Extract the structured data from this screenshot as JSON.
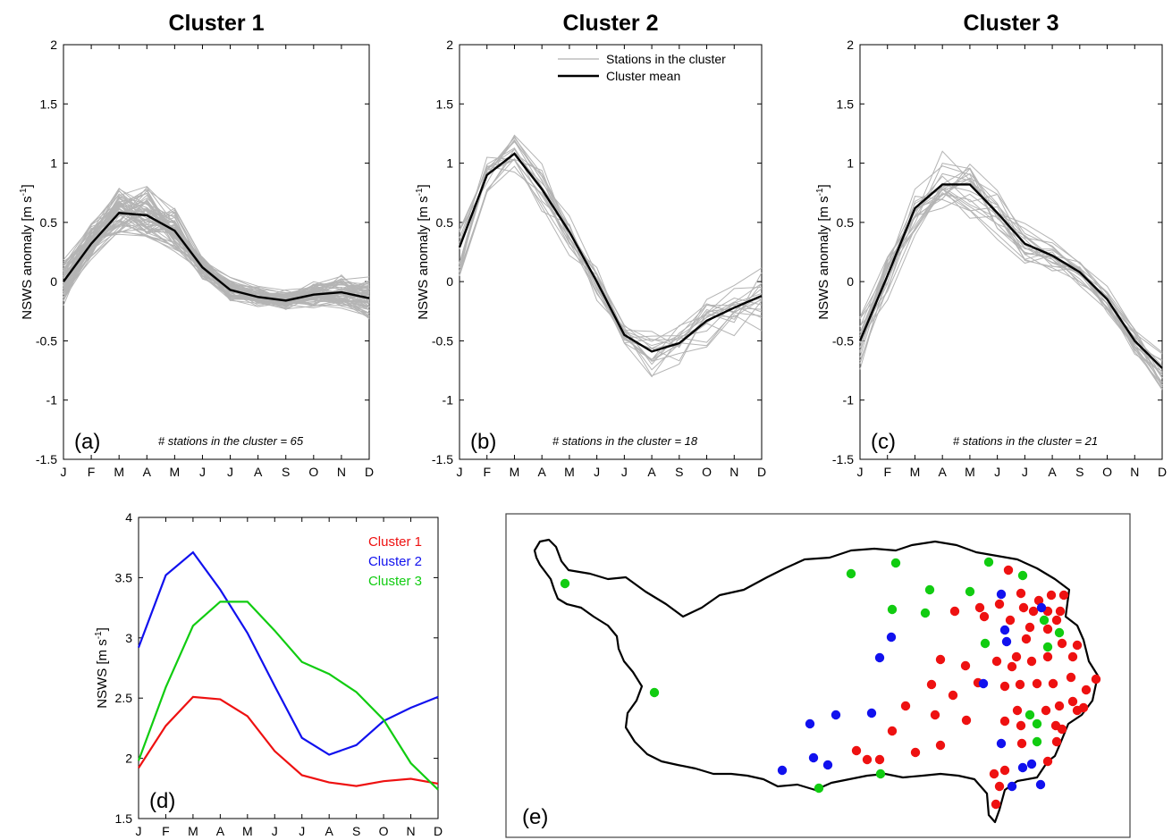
{
  "chart_data": [
    {
      "type": "line",
      "title": "Cluster 1",
      "panel_label": "(a)",
      "ylabel": "NSWS anomaly [m s",
      "ylabel_sup": "-1",
      "ylabel_end": "]",
      "ylim": [
        -1.5,
        2
      ],
      "yticks": [
        "-1.5",
        "-1",
        "-0.5",
        "0",
        "0.5",
        "1",
        "1.5",
        "2"
      ],
      "categories": [
        "J",
        "F",
        "M",
        "A",
        "M",
        "J",
        "J",
        "A",
        "S",
        "O",
        "N",
        "D"
      ],
      "note": "# stations in the cluster = 65",
      "mean": [
        0.0,
        0.32,
        0.58,
        0.56,
        0.43,
        0.12,
        -0.07,
        -0.13,
        -0.16,
        -0.11,
        -0.09,
        -0.14
      ],
      "spread": [
        0.18,
        0.16,
        0.22,
        0.22,
        0.18,
        0.1,
        0.09,
        0.08,
        0.08,
        0.1,
        0.13,
        0.17
      ],
      "station_count": 65,
      "legend": []
    },
    {
      "type": "line",
      "title": "Cluster 2",
      "panel_label": "(b)",
      "ylabel": "NSWS anomaly [m s",
      "ylabel_sup": "-1",
      "ylabel_end": "]",
      "ylim": [
        -1.5,
        2
      ],
      "yticks": [
        "-1.5",
        "-1",
        "-0.5",
        "0",
        "0.5",
        "1",
        "1.5",
        "2"
      ],
      "categories": [
        "J",
        "F",
        "M",
        "A",
        "M",
        "J",
        "J",
        "A",
        "S",
        "O",
        "N",
        "D"
      ],
      "note": "# stations in the cluster = 18",
      "mean": [
        0.29,
        0.9,
        1.08,
        0.78,
        0.42,
        0.0,
        -0.45,
        -0.59,
        -0.52,
        -0.33,
        -0.22,
        -0.12
      ],
      "spread": [
        0.25,
        0.2,
        0.18,
        0.2,
        0.18,
        0.15,
        0.12,
        0.2,
        0.18,
        0.2,
        0.22,
        0.3
      ],
      "station_count": 18,
      "legend": [
        {
          "label": "Stations in the cluster",
          "color": "#b0b0b0"
        },
        {
          "label": "Cluster mean",
          "color": "#000000"
        }
      ]
    },
    {
      "type": "line",
      "title": "Cluster 3",
      "panel_label": "(c)",
      "ylabel": "NSWS anomaly [m s",
      "ylabel_sup": "-1",
      "ylabel_end": "]",
      "ylim": [
        -1.5,
        2
      ],
      "yticks": [
        "-1.5",
        "-1",
        "-0.5",
        "0",
        "0.5",
        "1",
        "1.5",
        "2"
      ],
      "categories": [
        "J",
        "F",
        "M",
        "A",
        "M",
        "J",
        "J",
        "A",
        "S",
        "O",
        "N",
        "D"
      ],
      "note": "# stations in the cluster = 21",
      "mean": [
        -0.5,
        0.05,
        0.62,
        0.82,
        0.82,
        0.58,
        0.32,
        0.22,
        0.08,
        -0.15,
        -0.5,
        -0.73
      ],
      "spread": [
        0.22,
        0.22,
        0.2,
        0.25,
        0.25,
        0.2,
        0.15,
        0.12,
        0.1,
        0.1,
        0.12,
        0.2
      ],
      "station_count": 21,
      "legend": []
    },
    {
      "type": "line",
      "panel_label": "(d)",
      "ylabel": "NSWS [m s",
      "ylabel_sup": "-1",
      "ylabel_end": "]",
      "ylim": [
        1.5,
        4
      ],
      "yticks": [
        "1.5",
        "2",
        "2.5",
        "3",
        "3.5",
        "4"
      ],
      "categories": [
        "J",
        "F",
        "M",
        "A",
        "M",
        "J",
        "J",
        "A",
        "S",
        "O",
        "N",
        "D"
      ],
      "series": [
        {
          "name": "Cluster 1",
          "color": "#ee1111",
          "values": [
            1.92,
            2.27,
            2.51,
            2.49,
            2.35,
            2.06,
            1.86,
            1.8,
            1.77,
            1.81,
            1.83,
            1.79
          ]
        },
        {
          "name": "Cluster 2",
          "color": "#1111ee",
          "values": [
            2.92,
            3.52,
            3.71,
            3.4,
            3.04,
            2.6,
            2.17,
            2.03,
            2.11,
            2.31,
            2.42,
            2.51
          ]
        },
        {
          "name": "Cluster 3",
          "color": "#11cc11",
          "values": [
            1.98,
            2.59,
            3.1,
            3.3,
            3.3,
            3.06,
            2.8,
            2.7,
            2.55,
            2.32,
            1.96,
            1.74
          ]
        }
      ]
    }
  ],
  "map": {
    "panel_label": "(e)",
    "cluster_colors": {
      "1": "#ee1111",
      "2": "#1111ee",
      "3": "#11cc11"
    }
  }
}
